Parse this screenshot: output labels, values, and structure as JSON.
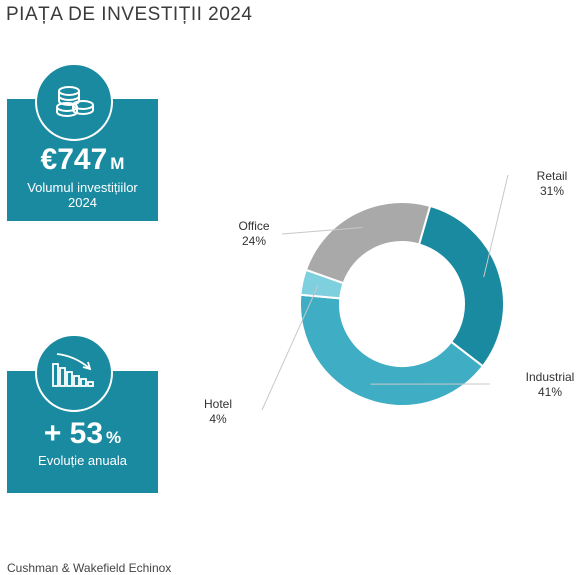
{
  "header": {
    "title": "PIAȚA DE INVESTIȚII 2024"
  },
  "kpis": {
    "volume": {
      "value": "€747",
      "unit": "M",
      "caption_line1": "Volumul investițiilor",
      "caption_line2": "2024",
      "icon": "coins-icon"
    },
    "growth": {
      "value": "+ 53",
      "unit": "%",
      "caption": "Evoluție anuala",
      "icon": "declining-bar-chart-icon"
    }
  },
  "colors": {
    "brand": "#1a8aa1",
    "retail": "#1a8aa1",
    "industrial": "#3fadc3",
    "hotel": "#7fd0df",
    "office": "#a9a9a9"
  },
  "chart_data": {
    "type": "pie",
    "donut": true,
    "slices": [
      {
        "label": "Retail",
        "value": 31,
        "value_label": "31%",
        "color": "#1a8aa1"
      },
      {
        "label": "Industrial",
        "value": 41,
        "value_label": "41%",
        "color": "#3fadc3"
      },
      {
        "label": "Hotel",
        "value": 4,
        "value_label": "4%",
        "color": "#7fd0df"
      },
      {
        "label": "Office",
        "value": 24,
        "value_label": "24%",
        "color": "#a9a9a9"
      }
    ]
  },
  "footer": {
    "source": "Cushman & Wakefield Echinox"
  }
}
